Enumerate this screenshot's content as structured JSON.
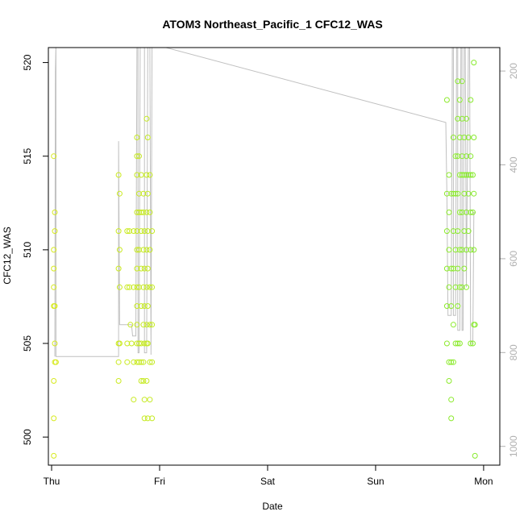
{
  "chart_data": {
    "type": "scatter",
    "title": "ATOM3 Northeast_Pacific_1 CFC12_WAS",
    "xlabel": "Date",
    "ylabel": "CFC12_WAS",
    "x_tick_labels": [
      "Thu",
      "Fri",
      "Sat",
      "Sun",
      "Mon"
    ],
    "x_tick_positions_days": [
      0,
      1,
      2,
      3,
      4
    ],
    "xlim_days": [
      -0.03,
      4.15
    ],
    "ylim": [
      498.5,
      520.8
    ],
    "y_ticks": [
      500,
      505,
      510,
      515,
      520
    ],
    "right_axis_ticks": [
      200,
      400,
      600,
      800,
      1000
    ],
    "right_axis_lim": [
      1040,
      150
    ],
    "colors": {
      "line": "#c0c0c0",
      "points_start": "#d8ea1e",
      "points_end": "#82ea2e",
      "axis": "#000000",
      "right_axis": "#b0b0b0"
    },
    "points": [
      {
        "x": 0.02,
        "y": 515
      },
      {
        "x": 0.02,
        "y": 510
      },
      {
        "x": 0.02,
        "y": 509
      },
      {
        "x": 0.02,
        "y": 508
      },
      {
        "x": 0.02,
        "y": 507
      },
      {
        "x": 0.02,
        "y": 503
      },
      {
        "x": 0.02,
        "y": 501
      },
      {
        "x": 0.02,
        "y": 499
      },
      {
        "x": 0.03,
        "y": 512
      },
      {
        "x": 0.03,
        "y": 511
      },
      {
        "x": 0.03,
        "y": 507
      },
      {
        "x": 0.03,
        "y": 505
      },
      {
        "x": 0.03,
        "y": 504
      },
      {
        "x": 0.04,
        "y": 504
      },
      {
        "x": 0.62,
        "y": 514
      },
      {
        "x": 0.62,
        "y": 511
      },
      {
        "x": 0.62,
        "y": 509
      },
      {
        "x": 0.62,
        "y": 505
      },
      {
        "x": 0.62,
        "y": 504
      },
      {
        "x": 0.62,
        "y": 503
      },
      {
        "x": 0.63,
        "y": 513
      },
      {
        "x": 0.63,
        "y": 510
      },
      {
        "x": 0.63,
        "y": 508
      },
      {
        "x": 0.63,
        "y": 505
      },
      {
        "x": 0.7,
        "y": 511
      },
      {
        "x": 0.7,
        "y": 508
      },
      {
        "x": 0.7,
        "y": 505
      },
      {
        "x": 0.7,
        "y": 504
      },
      {
        "x": 0.72,
        "y": 511
      },
      {
        "x": 0.72,
        "y": 508
      },
      {
        "x": 0.73,
        "y": 506
      },
      {
        "x": 0.74,
        "y": 505
      },
      {
        "x": 0.76,
        "y": 511
      },
      {
        "x": 0.76,
        "y": 508
      },
      {
        "x": 0.76,
        "y": 504
      },
      {
        "x": 0.76,
        "y": 502
      },
      {
        "x": 0.79,
        "y": 516
      },
      {
        "x": 0.79,
        "y": 515
      },
      {
        "x": 0.79,
        "y": 514
      },
      {
        "x": 0.79,
        "y": 512
      },
      {
        "x": 0.79,
        "y": 511
      },
      {
        "x": 0.79,
        "y": 510
      },
      {
        "x": 0.79,
        "y": 509
      },
      {
        "x": 0.79,
        "y": 508
      },
      {
        "x": 0.79,
        "y": 507
      },
      {
        "x": 0.79,
        "y": 506
      },
      {
        "x": 0.79,
        "y": 505
      },
      {
        "x": 0.79,
        "y": 504
      },
      {
        "x": 0.81,
        "y": 515
      },
      {
        "x": 0.81,
        "y": 513
      },
      {
        "x": 0.81,
        "y": 512
      },
      {
        "x": 0.81,
        "y": 510
      },
      {
        "x": 0.81,
        "y": 508
      },
      {
        "x": 0.81,
        "y": 505
      },
      {
        "x": 0.81,
        "y": 504
      },
      {
        "x": 0.83,
        "y": 514
      },
      {
        "x": 0.83,
        "y": 512
      },
      {
        "x": 0.83,
        "y": 511
      },
      {
        "x": 0.83,
        "y": 509
      },
      {
        "x": 0.83,
        "y": 507
      },
      {
        "x": 0.83,
        "y": 505
      },
      {
        "x": 0.83,
        "y": 504
      },
      {
        "x": 0.83,
        "y": 503
      },
      {
        "x": 0.85,
        "y": 513
      },
      {
        "x": 0.85,
        "y": 512
      },
      {
        "x": 0.85,
        "y": 510
      },
      {
        "x": 0.85,
        "y": 508
      },
      {
        "x": 0.85,
        "y": 506
      },
      {
        "x": 0.85,
        "y": 504
      },
      {
        "x": 0.85,
        "y": 503
      },
      {
        "x": 0.86,
        "y": 511
      },
      {
        "x": 0.86,
        "y": 509
      },
      {
        "x": 0.86,
        "y": 507
      },
      {
        "x": 0.86,
        "y": 505
      },
      {
        "x": 0.86,
        "y": 502
      },
      {
        "x": 0.86,
        "y": 501
      },
      {
        "x": 0.88,
        "y": 517
      },
      {
        "x": 0.88,
        "y": 514
      },
      {
        "x": 0.88,
        "y": 512
      },
      {
        "x": 0.88,
        "y": 510
      },
      {
        "x": 0.88,
        "y": 508
      },
      {
        "x": 0.88,
        "y": 506
      },
      {
        "x": 0.88,
        "y": 505
      },
      {
        "x": 0.88,
        "y": 503
      },
      {
        "x": 0.89,
        "y": 516
      },
      {
        "x": 0.89,
        "y": 513
      },
      {
        "x": 0.89,
        "y": 511
      },
      {
        "x": 0.89,
        "y": 509
      },
      {
        "x": 0.89,
        "y": 507
      },
      {
        "x": 0.89,
        "y": 505
      },
      {
        "x": 0.89,
        "y": 501
      },
      {
        "x": 0.91,
        "y": 514
      },
      {
        "x": 0.91,
        "y": 512
      },
      {
        "x": 0.91,
        "y": 510
      },
      {
        "x": 0.91,
        "y": 508
      },
      {
        "x": 0.91,
        "y": 506
      },
      {
        "x": 0.91,
        "y": 504
      },
      {
        "x": 0.91,
        "y": 502
      },
      {
        "x": 0.93,
        "y": 511
      },
      {
        "x": 0.93,
        "y": 508
      },
      {
        "x": 0.93,
        "y": 506
      },
      {
        "x": 0.93,
        "y": 504
      },
      {
        "x": 0.93,
        "y": 501
      },
      {
        "x": 3.66,
        "y": 518
      },
      {
        "x": 3.66,
        "y": 513
      },
      {
        "x": 3.66,
        "y": 511
      },
      {
        "x": 3.66,
        "y": 509
      },
      {
        "x": 3.66,
        "y": 507
      },
      {
        "x": 3.66,
        "y": 505
      },
      {
        "x": 3.68,
        "y": 514
      },
      {
        "x": 3.68,
        "y": 512
      },
      {
        "x": 3.68,
        "y": 510
      },
      {
        "x": 3.68,
        "y": 508
      },
      {
        "x": 3.68,
        "y": 504
      },
      {
        "x": 3.68,
        "y": 503
      },
      {
        "x": 3.7,
        "y": 513
      },
      {
        "x": 3.7,
        "y": 509
      },
      {
        "x": 3.7,
        "y": 507
      },
      {
        "x": 3.7,
        "y": 504
      },
      {
        "x": 3.7,
        "y": 502
      },
      {
        "x": 3.7,
        "y": 501
      },
      {
        "x": 3.72,
        "y": 516
      },
      {
        "x": 3.72,
        "y": 513
      },
      {
        "x": 3.72,
        "y": 511
      },
      {
        "x": 3.72,
        "y": 509
      },
      {
        "x": 3.72,
        "y": 506
      },
      {
        "x": 3.72,
        "y": 504
      },
      {
        "x": 3.74,
        "y": 515
      },
      {
        "x": 3.74,
        "y": 513
      },
      {
        "x": 3.74,
        "y": 510
      },
      {
        "x": 3.74,
        "y": 508
      },
      {
        "x": 3.74,
        "y": 505
      },
      {
        "x": 3.76,
        "y": 519
      },
      {
        "x": 3.76,
        "y": 517
      },
      {
        "x": 3.76,
        "y": 515
      },
      {
        "x": 3.76,
        "y": 513
      },
      {
        "x": 3.76,
        "y": 511
      },
      {
        "x": 3.76,
        "y": 509
      },
      {
        "x": 3.76,
        "y": 507
      },
      {
        "x": 3.76,
        "y": 505
      },
      {
        "x": 3.78,
        "y": 518
      },
      {
        "x": 3.78,
        "y": 516
      },
      {
        "x": 3.78,
        "y": 514
      },
      {
        "x": 3.78,
        "y": 512
      },
      {
        "x": 3.78,
        "y": 510
      },
      {
        "x": 3.78,
        "y": 508
      },
      {
        "x": 3.78,
        "y": 505
      },
      {
        "x": 3.8,
        "y": 519
      },
      {
        "x": 3.8,
        "y": 517
      },
      {
        "x": 3.8,
        "y": 515
      },
      {
        "x": 3.8,
        "y": 514
      },
      {
        "x": 3.8,
        "y": 512
      },
      {
        "x": 3.8,
        "y": 510
      },
      {
        "x": 3.8,
        "y": 508
      },
      {
        "x": 3.82,
        "y": 516
      },
      {
        "x": 3.82,
        "y": 514
      },
      {
        "x": 3.82,
        "y": 513
      },
      {
        "x": 3.82,
        "y": 511
      },
      {
        "x": 3.82,
        "y": 509
      },
      {
        "x": 3.84,
        "y": 517
      },
      {
        "x": 3.84,
        "y": 515
      },
      {
        "x": 3.84,
        "y": 514
      },
      {
        "x": 3.84,
        "y": 512
      },
      {
        "x": 3.84,
        "y": 510
      },
      {
        "x": 3.84,
        "y": 508
      },
      {
        "x": 3.86,
        "y": 516
      },
      {
        "x": 3.86,
        "y": 514
      },
      {
        "x": 3.86,
        "y": 513
      },
      {
        "x": 3.86,
        "y": 511
      },
      {
        "x": 3.88,
        "y": 518
      },
      {
        "x": 3.88,
        "y": 515
      },
      {
        "x": 3.88,
        "y": 514
      },
      {
        "x": 3.88,
        "y": 512
      },
      {
        "x": 3.88,
        "y": 510
      },
      {
        "x": 3.88,
        "y": 505
      },
      {
        "x": 3.9,
        "y": 514
      },
      {
        "x": 3.9,
        "y": 512
      },
      {
        "x": 3.9,
        "y": 505
      },
      {
        "x": 3.91,
        "y": 520
      },
      {
        "x": 3.91,
        "y": 516
      },
      {
        "x": 3.91,
        "y": 513
      },
      {
        "x": 3.91,
        "y": 510
      },
      {
        "x": 3.91,
        "y": 506
      },
      {
        "x": 3.92,
        "y": 506
      },
      {
        "x": 3.92,
        "y": 499
      }
    ],
    "line": [
      {
        "x": 0.03,
        "y": 504.3
      },
      {
        "x": 0.035,
        "y": 519.5
      },
      {
        "x": 0.04,
        "y": 521
      },
      {
        "x": 0.04,
        "y": 504.3
      },
      {
        "x": 0.62,
        "y": 504.3
      },
      {
        "x": 0.62,
        "y": 515.8
      },
      {
        "x": 0.63,
        "y": 506
      },
      {
        "x": 0.74,
        "y": 506
      },
      {
        "x": 0.75,
        "y": 505.4
      },
      {
        "x": 0.78,
        "y": 505.4
      },
      {
        "x": 0.79,
        "y": 521
      },
      {
        "x": 0.8,
        "y": 521
      },
      {
        "x": 0.8,
        "y": 504.5
      },
      {
        "x": 0.81,
        "y": 504.5
      },
      {
        "x": 0.82,
        "y": 521
      },
      {
        "x": 0.86,
        "y": 521
      },
      {
        "x": 0.86,
        "y": 504.5
      },
      {
        "x": 0.88,
        "y": 504.5
      },
      {
        "x": 0.89,
        "y": 521
      },
      {
        "x": 0.91,
        "y": 521
      },
      {
        "x": 0.92,
        "y": 504.4
      },
      {
        "x": 0.93,
        "y": 521
      },
      {
        "x": 3.65,
        "y": 516.8
      },
      {
        "x": 3.66,
        "y": 512.8
      },
      {
        "x": 3.67,
        "y": 506.5
      },
      {
        "x": 3.7,
        "y": 506.5
      },
      {
        "x": 3.71,
        "y": 521
      },
      {
        "x": 3.72,
        "y": 521
      },
      {
        "x": 3.72,
        "y": 506.5
      },
      {
        "x": 3.74,
        "y": 506.5
      },
      {
        "x": 3.75,
        "y": 521
      },
      {
        "x": 3.76,
        "y": 521
      },
      {
        "x": 3.76,
        "y": 505.7
      },
      {
        "x": 3.78,
        "y": 505.7
      },
      {
        "x": 3.79,
        "y": 521
      },
      {
        "x": 3.8,
        "y": 521
      },
      {
        "x": 3.8,
        "y": 505.7
      },
      {
        "x": 3.81,
        "y": 505.7
      },
      {
        "x": 3.82,
        "y": 521
      },
      {
        "x": 3.83,
        "y": 521
      },
      {
        "x": 3.84,
        "y": 508
      },
      {
        "x": 3.86,
        "y": 521
      },
      {
        "x": 3.87,
        "y": 521
      },
      {
        "x": 3.88,
        "y": 505
      },
      {
        "x": 3.9,
        "y": 505
      },
      {
        "x": 3.91,
        "y": 512
      },
      {
        "x": 3.92,
        "y": 512
      }
    ]
  }
}
